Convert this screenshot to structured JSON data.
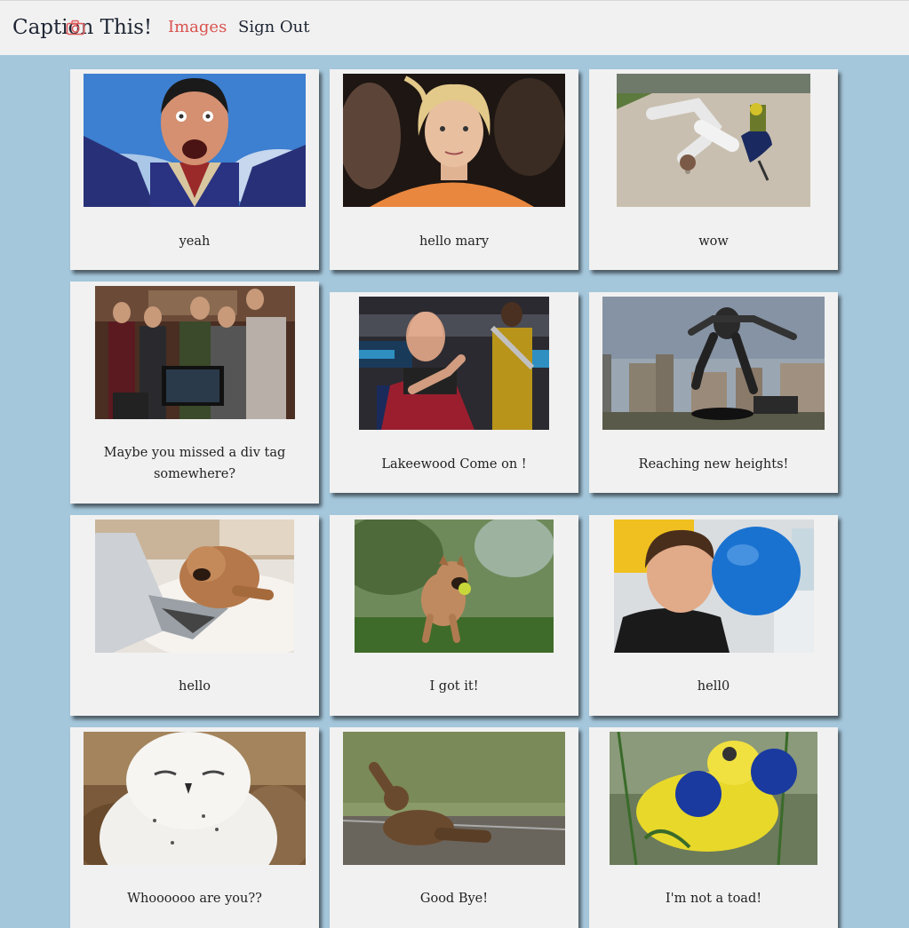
{
  "app": {
    "brand_prefix": "Capti",
    "brand_o": "o",
    "brand_suffix": "n This!",
    "camera_icon_color": "#e05a5a"
  },
  "nav": {
    "images_label": "Images",
    "signout_label": "Sign Out",
    "active_color": "#d9534f"
  },
  "cards": [
    {
      "caption": "yeah",
      "image": "man-screaming-photo"
    },
    {
      "caption": "hello mary",
      "image": "blonde-woman-photo"
    },
    {
      "caption": "wow",
      "image": "playground-fall-photo"
    },
    {
      "caption": "Maybe you missed a div tag somewhere?",
      "image": "group-at-computer-photo"
    },
    {
      "caption": "Lakeewood Come on !",
      "image": "starship-captain-photo"
    },
    {
      "caption": "Reaching new heights!",
      "image": "skateboard-jump-photo"
    },
    {
      "caption": "hello",
      "image": "puppy-laptop-photo"
    },
    {
      "caption": "I got it!",
      "image": "dog-ball-photo"
    },
    {
      "caption": "hell0",
      "image": "ball-face-photo"
    },
    {
      "caption": "Whoooooo are you??",
      "image": "snowy-owl-photo"
    },
    {
      "caption": "Good Bye!",
      "image": "bear-waving-photo"
    },
    {
      "caption": "I'm not a toad!",
      "image": "frog-boxing-photo"
    }
  ],
  "colors": {
    "background": "#a5c7dc",
    "card": "#f1f1f1",
    "navbar": "#f1f1f1"
  }
}
